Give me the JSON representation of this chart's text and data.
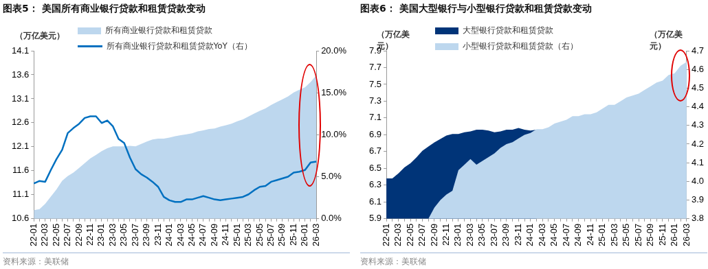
{
  "chart_data": [
    {
      "type": "area",
      "title": "图表5：  美国所有商业银行贷款和租赁贷款变动",
      "ylabel": "（万亿美元）",
      "categories": [
        "22-01",
        null,
        "22-03",
        null,
        "22-05",
        null,
        "22-07",
        null,
        "22-09",
        null,
        "22-11",
        null,
        "23-01",
        null,
        "23-03",
        null,
        "23-05",
        null,
        "23-07",
        null,
        "23-09",
        null,
        "23-11",
        null,
        "24-01",
        null,
        "24-03",
        null,
        "24-05",
        null,
        "24-07",
        null,
        "24-09",
        null,
        "24-11",
        null,
        "25-01",
        null,
        "25-03",
        null,
        "25-05",
        null,
        "25-07",
        null,
        "25-09",
        null,
        "25-11",
        null,
        "26-01",
        null,
        "26-03"
      ],
      "series": [
        {
          "name": "所有商业银行贷款和租赁贷款",
          "type": "area",
          "color": "#bdd7ee",
          "values": [
            10.78,
            10.8,
            10.91,
            11.06,
            11.21,
            11.39,
            11.49,
            11.56,
            11.66,
            11.76,
            11.86,
            11.93,
            12.01,
            12.07,
            12.11,
            12.11,
            12.11,
            12.12,
            12.11,
            12.16,
            12.21,
            12.25,
            12.27,
            12.27,
            12.29,
            12.32,
            12.34,
            12.36,
            12.38,
            12.42,
            12.44,
            12.47,
            12.48,
            12.52,
            12.55,
            12.58,
            12.63,
            12.67,
            12.73,
            12.79,
            12.85,
            12.9,
            12.97,
            13.03,
            13.09,
            13.15,
            13.23,
            13.29,
            13.34,
            13.45,
            13.59
          ]
        },
        {
          "name": "所有商业银行贷款和租赁贷款YoY（右）",
          "type": "line",
          "axis": "y2",
          "color": "#0070c0",
          "values": [
            4.2,
            4.5,
            4.4,
            5.8,
            7.1,
            8.2,
            10.2,
            10.8,
            11.3,
            12.0,
            12.2,
            12.2,
            11.4,
            11.7,
            11.0,
            9.5,
            9.0,
            7.3,
            5.9,
            5.3,
            4.9,
            4.4,
            3.8,
            2.6,
            2.2,
            2.0,
            2.0,
            2.3,
            2.3,
            2.5,
            2.7,
            2.5,
            2.3,
            2.2,
            2.3,
            2.4,
            2.5,
            2.6,
            2.9,
            3.4,
            3.8,
            3.9,
            4.4,
            4.6,
            4.8,
            5.0,
            5.5,
            5.6,
            5.8,
            6.7,
            6.8
          ]
        }
      ],
      "ylim": [
        10.6,
        14.1
      ],
      "yticks": [
        10.6,
        11.1,
        11.6,
        12.1,
        12.6,
        13.1,
        13.6,
        14.1
      ],
      "y2lim": [
        0,
        20
      ],
      "y2ticks": [
        {
          "value": 0,
          "label": "0.0%"
        },
        {
          "value": 5,
          "label": "5.0%"
        },
        {
          "value": 10,
          "label": "10.0%"
        },
        {
          "value": 15,
          "label": "15.0%"
        },
        {
          "value": 20,
          "label": "20.0%"
        }
      ],
      "grid": false,
      "legend": "top",
      "annotations": [
        "资料来源：美联储"
      ]
    },
    {
      "type": "area",
      "title": "图表6：  美国大型银行与小型银行贷款和租赁贷款变动",
      "ylabel": "（万亿美元）",
      "y2label": "（万亿美元）",
      "categories": [
        "22-01",
        null,
        "22-03",
        null,
        "22-05",
        null,
        "22-07",
        null,
        "22-09",
        null,
        "22-11",
        null,
        "23-01",
        null,
        "23-03",
        null,
        "23-05",
        null,
        "23-07",
        null,
        "23-09",
        null,
        "23-11",
        null,
        "24-01",
        null,
        "24-03",
        null,
        "24-05",
        null,
        "24-07",
        null,
        "24-09",
        null,
        "24-11",
        null,
        "25-01",
        null,
        "25-03",
        null,
        "25-05",
        null,
        "25-07",
        null,
        "25-09",
        null,
        "25-11",
        null,
        "26-01",
        null,
        "26-03"
      ],
      "series": [
        {
          "name": "大型银行贷款和租赁贷款",
          "type": "area",
          "color": "#003478",
          "values": [
            6.38,
            6.38,
            6.44,
            6.51,
            6.56,
            6.63,
            6.71,
            6.76,
            6.81,
            6.85,
            6.89,
            6.91,
            6.91,
            6.93,
            6.94,
            6.96,
            6.96,
            6.95,
            6.93,
            6.94,
            6.96,
            6.96,
            6.98,
            6.96,
            6.95,
            6.96,
            null,
            null,
            null,
            null,
            null,
            null,
            null,
            null,
            null,
            null,
            null,
            null,
            null,
            null,
            null,
            null,
            null,
            null,
            null,
            null,
            null,
            null,
            null,
            null,
            null
          ]
        },
        {
          "name": "小型银行贷款和租赁贷款（右）",
          "type": "area",
          "axis": "y2",
          "color": "#bdd7ee",
          "values": [
            null,
            null,
            null,
            null,
            null,
            null,
            null,
            3.8,
            3.86,
            3.9,
            3.93,
            3.95,
            4.06,
            4.09,
            4.12,
            4.09,
            4.11,
            4.13,
            4.15,
            4.18,
            4.2,
            4.21,
            4.23,
            4.25,
            4.26,
            4.28,
            4.28,
            4.29,
            4.31,
            4.32,
            4.33,
            4.35,
            4.35,
            4.36,
            4.36,
            4.37,
            4.39,
            4.41,
            4.41,
            4.43,
            4.45,
            4.46,
            4.47,
            4.49,
            4.51,
            4.53,
            4.54,
            4.57,
            4.58,
            4.62,
            4.64
          ]
        }
      ],
      "ylim": [
        5.9,
        7.9
      ],
      "yticks": [
        5.9,
        6.1,
        6.3,
        6.5,
        6.7,
        6.9,
        7.1,
        7.3,
        7.5,
        7.7,
        7.9
      ],
      "y2lim": [
        3.8,
        4.7
      ],
      "y2ticks": [
        3.8,
        3.9,
        {
          "value": 4,
          "label": "4.0"
        },
        4.1,
        4.2,
        4.3,
        4.4,
        4.5,
        4.6,
        4.7
      ],
      "grid": false,
      "legend": "top",
      "annotations": [
        "资料来源：美联储"
      ]
    }
  ]
}
